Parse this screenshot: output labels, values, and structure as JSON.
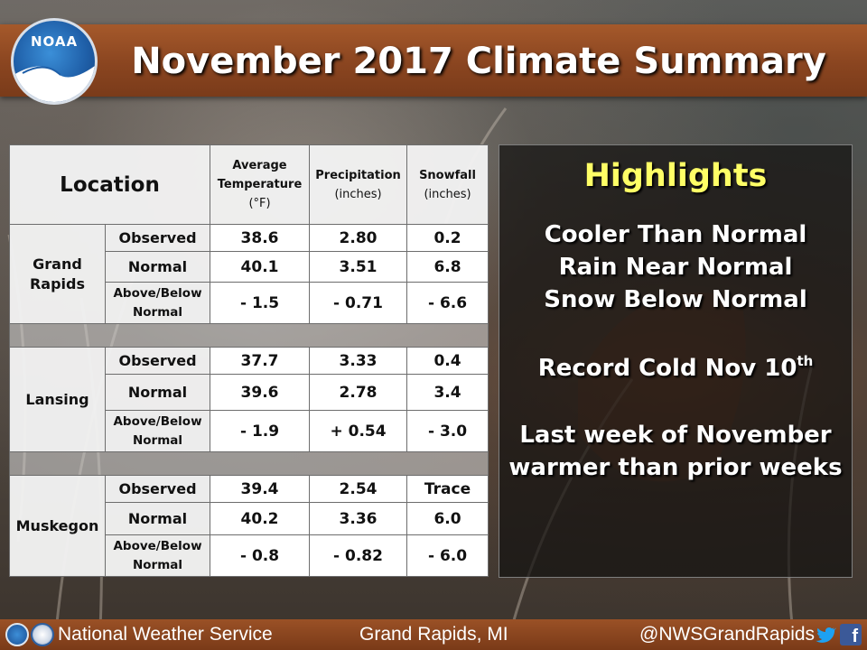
{
  "title": "November 2017 Climate Summary",
  "logo": {
    "text": "NOAA"
  },
  "table": {
    "headers": {
      "location": "Location",
      "temperature": {
        "line1": "Average",
        "line2": "Temperature",
        "unit": "(°F)"
      },
      "precipitation": {
        "line1": "Precipitation",
        "unit": "(inches)"
      },
      "snowfall": {
        "line1": "Snowfall",
        "unit": "(inches)"
      }
    },
    "row_labels": {
      "observed": "Observed",
      "normal": "Normal",
      "above_below_1": "Above/Below",
      "above_below_2": "Normal"
    },
    "locations": [
      {
        "name_line1": "Grand",
        "name_line2": "Rapids",
        "observed": {
          "temp": "38.6",
          "precip": "2.80",
          "snow": "0.2"
        },
        "normal": {
          "temp": "40.1",
          "precip": "3.51",
          "snow": "6.8"
        },
        "departure": {
          "temp": "- 1.5",
          "precip": "- 0.71",
          "snow": "- 6.6"
        }
      },
      {
        "name_line1": "Lansing",
        "name_line2": "",
        "observed": {
          "temp": "37.7",
          "precip": "3.33",
          "snow": "0.4"
        },
        "normal": {
          "temp": "39.6",
          "precip": "2.78",
          "snow": "3.4"
        },
        "departure": {
          "temp": "- 1.9",
          "precip": "+ 0.54",
          "snow": "- 3.0"
        }
      },
      {
        "name_line1": "Muskegon",
        "name_line2": "",
        "observed": {
          "temp": "39.4",
          "precip": "2.54",
          "snow": "Trace"
        },
        "normal": {
          "temp": "40.2",
          "precip": "3.36",
          "snow": "6.0"
        },
        "departure": {
          "temp": "- 0.8",
          "precip": "- 0.82",
          "snow": "- 6.0"
        }
      }
    ]
  },
  "highlights": {
    "title": "Highlights",
    "lines": [
      "Cooler Than Normal",
      "Rain Near Normal",
      "Snow Below Normal"
    ],
    "record_prefix": "Record Cold Nov 10",
    "record_suffix": "th",
    "last_week_1": "Last week of November",
    "last_week_2": "warmer than prior weeks"
  },
  "footer": {
    "org": "National Weather Service",
    "office": "Grand Rapids, MI",
    "handle": "@NWSGrandRapids",
    "fb_letter": "f"
  },
  "colors": {
    "banner": "#8a4520",
    "highlight_title": "#ffff66",
    "negative": "#1a7fc2",
    "positive": "#1f8a1f",
    "precip_snow_departure": "#d46a12"
  },
  "icons": [
    "noaa-logo-icon",
    "nws-logo-icon",
    "twitter-icon",
    "facebook-icon"
  ]
}
